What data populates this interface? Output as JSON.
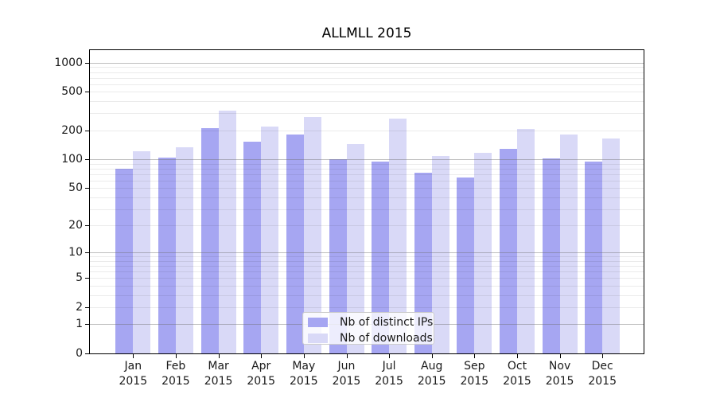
{
  "chart_data": {
    "type": "bar",
    "title": "ALLMLL 2015",
    "months": [
      "Jan",
      "Feb",
      "Mar",
      "Apr",
      "May",
      "Jun",
      "Jul",
      "Aug",
      "Sep",
      "Oct",
      "Nov",
      "Dec"
    ],
    "year": "2015",
    "series": [
      {
        "name": "Nb of distinct IPs",
        "color": "#a6a6f2",
        "values": [
          80,
          105,
          211,
          153,
          180,
          101,
          94,
          73,
          65,
          128,
          103,
          95
        ]
      },
      {
        "name": "Nb of downloads",
        "color": "#d9d9f7",
        "values": [
          122,
          133,
          320,
          217,
          276,
          143,
          263,
          108,
          117,
          207,
          180,
          164
        ]
      }
    ],
    "yscale": "log1p",
    "ylim": [
      0,
      1350
    ],
    "y_labeled_ticks": [
      0,
      1,
      2,
      5,
      10,
      20,
      50,
      100,
      200,
      500,
      1000
    ],
    "y_major_gridlines": [
      1,
      10,
      100,
      1000
    ],
    "y_minor_gridlines": [
      2,
      3,
      4,
      5,
      6,
      7,
      8,
      9,
      20,
      30,
      40,
      50,
      60,
      70,
      80,
      90,
      200,
      300,
      400,
      500,
      600,
      700,
      800,
      900
    ],
    "grid": "both",
    "legend_position": "lower center"
  },
  "colors": {
    "bar_distinct_ips": "#a6a6f2",
    "bar_downloads": "#d9d9f7",
    "grid_major": "#b3b3b3",
    "grid_minor": "#ebebeb",
    "spine": "#000000",
    "text": "#1a1a1a"
  }
}
